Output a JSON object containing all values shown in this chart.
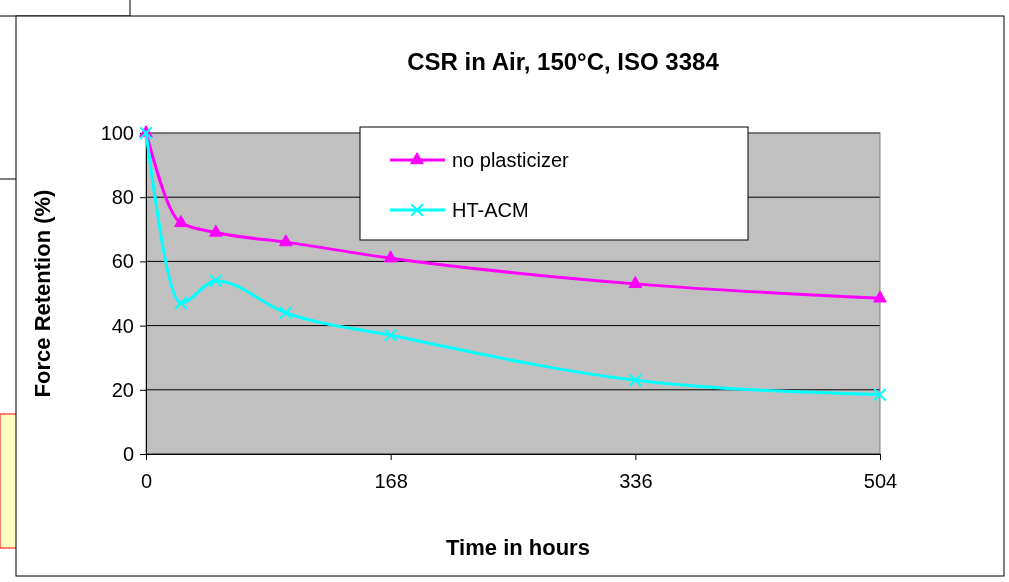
{
  "chart_data": {
    "type": "line",
    "title": "CSR in Air, 150°C, ISO 3384",
    "xlabel": "Time in hours",
    "ylabel": "Force Retention (%)",
    "x": [
      0,
      24,
      48,
      96,
      168,
      336,
      504
    ],
    "series": [
      {
        "name": "no plasticizer",
        "color": "#ff00ff",
        "marker": "triangle",
        "values": [
          100,
          72,
          69,
          66,
          61,
          53,
          48.5
        ]
      },
      {
        "name": "HT-ACM",
        "color": "#00ffff",
        "marker": "cross",
        "values": [
          100,
          47,
          54,
          44,
          37,
          23,
          18.5
        ]
      }
    ],
    "xlim": [
      0,
      504
    ],
    "xticks": [
      0,
      168,
      336,
      504
    ],
    "ylim": [
      0,
      100
    ],
    "yticks": [
      0,
      20,
      40,
      60,
      80,
      100
    ],
    "grid": "y",
    "legend": "top right"
  }
}
